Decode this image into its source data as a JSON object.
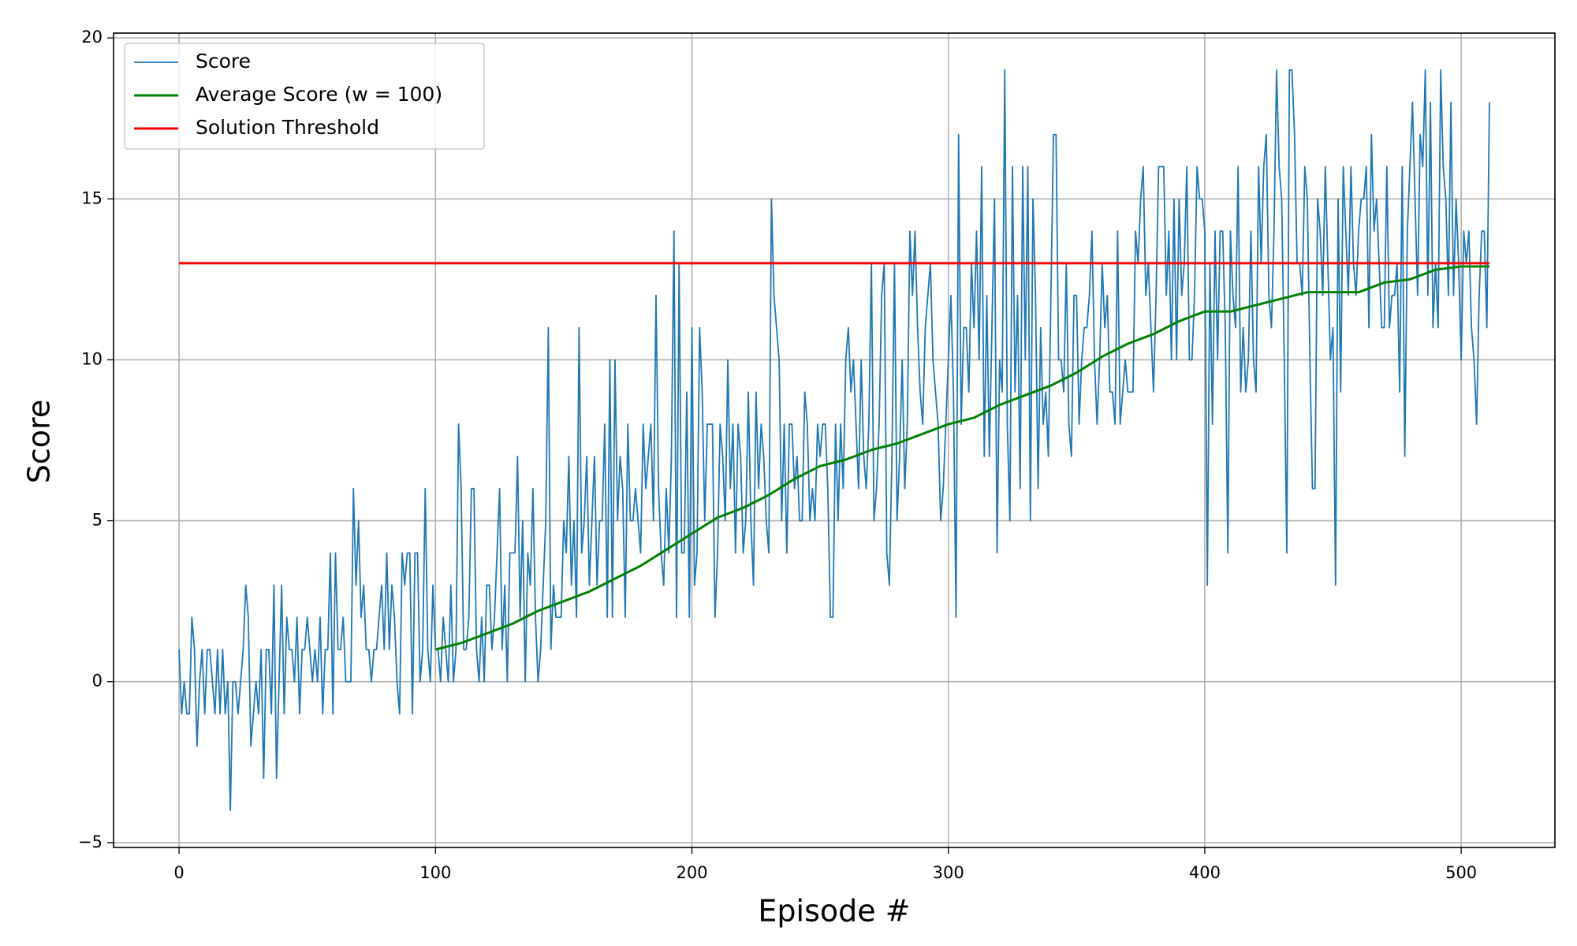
{
  "chart_data": {
    "type": "line",
    "xlabel": "Episode #",
    "ylabel": "Score",
    "xlim": [
      -25.55,
      536.55
    ],
    "ylim": [
      -5.15,
      20.15
    ],
    "xticks": [
      0,
      100,
      200,
      300,
      400,
      500
    ],
    "yticks": [
      {
        "value": -5,
        "label": "−5"
      },
      0,
      5,
      10,
      15,
      20
    ],
    "grid": true,
    "legend": "upper left",
    "series": [
      {
        "name": "Score",
        "color": "#1f77b4",
        "width": 1.8,
        "x": [
          0,
          1,
          2,
          3,
          4,
          5,
          6,
          7,
          8,
          9,
          10,
          11,
          12,
          13,
          14,
          15,
          16,
          17,
          18,
          19,
          20,
          21,
          22,
          23,
          24,
          25,
          26,
          27,
          28,
          29,
          30,
          31,
          32,
          33,
          34,
          35,
          36,
          37,
          38,
          39,
          40,
          41,
          42,
          43,
          44,
          45,
          46,
          47,
          48,
          49,
          50,
          51,
          52,
          53,
          54,
          55,
          56,
          57,
          58,
          59,
          60,
          61,
          62,
          63,
          64,
          65,
          66,
          67,
          68,
          69,
          70,
          71,
          72,
          73,
          74,
          75,
          76,
          77,
          78,
          79,
          80,
          81,
          82,
          83,
          84,
          85,
          86,
          87,
          88,
          89,
          90,
          91,
          92,
          93,
          94,
          95,
          96,
          97,
          98,
          99,
          100,
          101,
          102,
          103,
          104,
          105,
          106,
          107,
          108,
          109,
          110,
          111,
          112,
          113,
          114,
          115,
          116,
          117,
          118,
          119,
          120,
          121,
          122,
          123,
          124,
          125,
          126,
          127,
          128,
          129,
          130,
          131,
          132,
          133,
          134,
          135,
          136,
          137,
          138,
          139,
          140,
          141,
          142,
          143,
          144,
          145,
          146,
          147,
          148,
          149,
          150,
          151,
          152,
          153,
          154,
          155,
          156,
          157,
          158,
          159,
          160,
          161,
          162,
          163,
          164,
          165,
          166,
          167,
          168,
          169,
          170,
          171,
          172,
          173,
          174,
          175,
          176,
          177,
          178,
          179,
          180,
          181,
          182,
          183,
          184,
          185,
          186,
          187,
          188,
          189,
          190,
          191,
          192,
          193,
          194,
          195,
          196,
          197,
          198,
          199,
          200,
          201,
          202,
          203,
          204,
          205,
          206,
          207,
          208,
          209,
          210,
          211,
          212,
          213,
          214,
          215,
          216,
          217,
          218,
          219,
          220,
          221,
          222,
          223,
          224,
          225,
          226,
          227,
          228,
          229,
          230,
          231,
          232,
          233,
          234,
          235,
          236,
          237,
          238,
          239,
          240,
          241,
          242,
          243,
          244,
          245,
          246,
          247,
          248,
          249,
          250,
          251,
          252,
          253,
          254,
          255,
          256,
          257,
          258,
          259,
          260,
          261,
          262,
          263,
          264,
          265,
          266,
          267,
          268,
          269,
          270,
          271,
          272,
          273,
          274,
          275,
          276,
          277,
          278,
          279,
          280,
          281,
          282,
          283,
          284,
          285,
          286,
          287,
          288,
          289,
          290,
          291,
          292,
          293,
          294,
          295,
          296,
          297,
          298,
          299,
          300,
          301,
          302,
          303,
          304,
          305,
          306,
          307,
          308,
          309,
          310,
          311,
          312,
          313,
          314,
          315,
          316,
          317,
          318,
          319,
          320,
          321,
          322,
          323,
          324,
          325,
          326,
          327,
          328,
          329,
          330,
          331,
          332,
          333,
          334,
          335,
          336,
          337,
          338,
          339,
          340,
          341,
          342,
          343,
          344,
          345,
          346,
          347,
          348,
          349,
          350,
          351,
          352,
          353,
          354,
          355,
          356,
          357,
          358,
          359,
          360,
          361,
          362,
          363,
          364,
          365,
          366,
          367,
          368,
          369,
          370,
          371,
          372,
          373,
          374,
          375,
          376,
          377,
          378,
          379,
          380,
          381,
          382,
          383,
          384,
          385,
          386,
          387,
          388,
          389,
          390,
          391,
          392,
          393,
          394,
          395,
          396,
          397,
          398,
          399,
          400,
          401,
          402,
          403,
          404,
          405,
          406,
          407,
          408,
          409,
          410,
          411,
          412,
          413,
          414,
          415,
          416,
          417,
          418,
          419,
          420,
          421,
          422,
          423,
          424,
          425,
          426,
          427,
          428,
          429,
          430,
          431,
          432,
          433,
          434,
          435,
          436,
          437,
          438,
          439,
          440,
          441,
          442,
          443,
          444,
          445,
          446,
          447,
          448,
          449,
          450,
          451,
          452,
          453,
          454,
          455,
          456,
          457,
          458,
          459,
          460,
          461,
          462,
          463,
          464,
          465,
          466,
          467,
          468,
          469,
          470,
          471,
          472,
          473,
          474,
          475,
          476,
          477,
          478,
          479,
          480,
          481,
          482,
          483,
          484,
          485,
          486,
          487,
          488,
          489,
          490,
          491,
          492,
          493,
          494,
          495,
          496,
          497,
          498,
          499,
          500,
          501,
          502,
          503,
          504,
          505,
          506,
          507,
          508,
          509,
          510,
          511
        ],
        "values": [
          1,
          -1,
          0,
          -1,
          -1,
          2,
          1,
          -2,
          0,
          1,
          -1,
          1,
          1,
          0,
          -1,
          1,
          -1,
          1,
          -1,
          0,
          -4,
          0,
          0,
          -1,
          0,
          1,
          3,
          2,
          -2,
          -1,
          0,
          -1,
          1,
          -3,
          1,
          1,
          -1,
          3,
          -3,
          0,
          3,
          -1,
          2,
          1,
          1,
          0,
          2,
          -1,
          1,
          1,
          2,
          1,
          0,
          1,
          0,
          2,
          -1,
          1,
          1,
          4,
          -1,
          4,
          1,
          1,
          2,
          0,
          0,
          0,
          6,
          3,
          5,
          2,
          3,
          1,
          1,
          0,
          1,
          1,
          2,
          3,
          1,
          4,
          1,
          3,
          2,
          0,
          -1,
          4,
          3,
          4,
          4,
          -1,
          4,
          4,
          0,
          1,
          6,
          1,
          0,
          3,
          1,
          1,
          0,
          2,
          1,
          0,
          3,
          0,
          1,
          8,
          6,
          1,
          1,
          2,
          6,
          6,
          1,
          0,
          2,
          0,
          3,
          3,
          1,
          2,
          4,
          6,
          1,
          3,
          0,
          4,
          4,
          4,
          7,
          2,
          5,
          0,
          4,
          3,
          6,
          2,
          0,
          1,
          3,
          5,
          11,
          1,
          3,
          2,
          2,
          2,
          5,
          4,
          7,
          3,
          5,
          2,
          11,
          4,
          5,
          7,
          3,
          5,
          7,
          3,
          5,
          5,
          8,
          2,
          10,
          2,
          10,
          5,
          7,
          6,
          2,
          8,
          5,
          5,
          6,
          5,
          4,
          8,
          6,
          7,
          8,
          5,
          12,
          6,
          4,
          3,
          6,
          4,
          7,
          14,
          2,
          13,
          4,
          4,
          9,
          2,
          11,
          3,
          4,
          11,
          9,
          5,
          8,
          8,
          8,
          2,
          4,
          8,
          7,
          5,
          10,
          6,
          8,
          4,
          8,
          7,
          4,
          5,
          9,
          5,
          3,
          9,
          6,
          8,
          7,
          5,
          4,
          15,
          12,
          11,
          10,
          5,
          8,
          4,
          8,
          8,
          6,
          7,
          5,
          5,
          9,
          8,
          5,
          6,
          5,
          8,
          7,
          8,
          8,
          6,
          2,
          2,
          8,
          5,
          8,
          6,
          10,
          11,
          9,
          10,
          8,
          6,
          10,
          7,
          6,
          8,
          13,
          5,
          6,
          8,
          12,
          13,
          4,
          3,
          7,
          13,
          5,
          7,
          10,
          6,
          8,
          14,
          12,
          14,
          11,
          9,
          8,
          11,
          12,
          13,
          10,
          9,
          8,
          5,
          6,
          8,
          10,
          12,
          9,
          2,
          17,
          8,
          11,
          11,
          9,
          13,
          11,
          14,
          10,
          16,
          7,
          12,
          7,
          11,
          15,
          4,
          10,
          9,
          19,
          8,
          5,
          16,
          9,
          12,
          6,
          16,
          10,
          16,
          5,
          15,
          12,
          6,
          11,
          8,
          9,
          7,
          12,
          17,
          17,
          10,
          10,
          9,
          13,
          8,
          7,
          12,
          12,
          8,
          10,
          11,
          11,
          12,
          14,
          10,
          8,
          10,
          13,
          11,
          12,
          9,
          9,
          8,
          14,
          8,
          9,
          10,
          9,
          9,
          9,
          14,
          13,
          15,
          16,
          12,
          13,
          11,
          9,
          12,
          16,
          16,
          16,
          12,
          14,
          10,
          15,
          10,
          15,
          12,
          13,
          16,
          10,
          10,
          12,
          16,
          15,
          15,
          14,
          3,
          13,
          8,
          14,
          10,
          14,
          14,
          11,
          4,
          14,
          12,
          11,
          16,
          9,
          11,
          9,
          10,
          14,
          10,
          9,
          16,
          13,
          16,
          17,
          12,
          11,
          14,
          19,
          16,
          15,
          10,
          4,
          19,
          19,
          17,
          13,
          13,
          12,
          16,
          15,
          10,
          6,
          6,
          15,
          14,
          12,
          16,
          13,
          10,
          11,
          3,
          15,
          9,
          16,
          14,
          12,
          16,
          13,
          12,
          14,
          15,
          15,
          16,
          11,
          17,
          14,
          15,
          13,
          11,
          11,
          16,
          11,
          12,
          12,
          13,
          9,
          16,
          7,
          14,
          16,
          18,
          15,
          12,
          17,
          16,
          19,
          12,
          18,
          11,
          13,
          11,
          19,
          16,
          15,
          12,
          18,
          12,
          15,
          13,
          10,
          14,
          13,
          14,
          11,
          10,
          8,
          12,
          14,
          14,
          11,
          18
        ]
      },
      {
        "name": "Average Score (w = 100)",
        "color": "#008000",
        "width": 3,
        "x": [
          100,
          110,
          120,
          130,
          140,
          150,
          160,
          170,
          180,
          190,
          200,
          210,
          220,
          230,
          240,
          250,
          260,
          270,
          280,
          290,
          300,
          310,
          320,
          330,
          340,
          350,
          360,
          370,
          380,
          390,
          400,
          410,
          420,
          430,
          440,
          450,
          460,
          470,
          480,
          490,
          500,
          511
        ],
        "values": [
          1.0,
          1.2,
          1.5,
          1.8,
          2.2,
          2.5,
          2.8,
          3.2,
          3.6,
          4.1,
          4.6,
          5.1,
          5.4,
          5.8,
          6.3,
          6.7,
          6.9,
          7.2,
          7.4,
          7.7,
          8.0,
          8.2,
          8.6,
          8.9,
          9.2,
          9.6,
          10.1,
          10.5,
          10.8,
          11.2,
          11.5,
          11.5,
          11.7,
          11.9,
          12.1,
          12.1,
          12.1,
          12.4,
          12.5,
          12.8,
          12.9,
          12.9
        ]
      },
      {
        "name": "Solution Threshold",
        "color": "#ff0000",
        "width": 3,
        "x": [
          0,
          511
        ],
        "values": [
          13,
          13
        ]
      }
    ]
  }
}
